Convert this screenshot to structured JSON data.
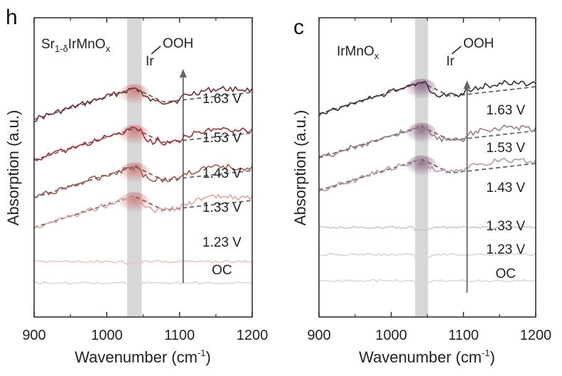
{
  "chart_data": [
    {
      "type": "line",
      "panel_letter": "h",
      "sample": {
        "main": "Sr",
        "sub": "1-δ",
        "rest": "IrMnO",
        "sub2": "x"
      },
      "annotation": {
        "metal": "Ir",
        "group": "OOH"
      },
      "xlabel": "Wavenumber (cm",
      "xlabel_sup": "-1",
      "xlabel_end": ")",
      "ylabel": "Absorption (a.u.)",
      "xlim": [
        900,
        1200
      ],
      "xticks": [
        900,
        1000,
        1100,
        1200
      ],
      "minor_xticks": [
        950,
        1050,
        1150
      ],
      "highlight_band": [
        1028,
        1048
      ],
      "arrow_x": 1105,
      "series": [
        {
          "name": "1.63 V",
          "color": "#7a2a2e",
          "offset": 5,
          "peak": 1.0,
          "fit": true
        },
        {
          "name": "1.53 V",
          "color": "#b4282e",
          "offset": 4,
          "peak": 1.0,
          "fit": true
        },
        {
          "name": "1.43 V",
          "color": "#a8584a",
          "offset": 3,
          "peak": 0.9,
          "fit": true
        },
        {
          "name": "1.33 V",
          "color": "#e3a49c",
          "offset": 2,
          "peak": 0.9,
          "fit": true
        },
        {
          "name": "1.23 V",
          "color": "#f0c3c0",
          "offset": 1,
          "peak": 0,
          "fit": false
        },
        {
          "name": "OC",
          "color": "#d9d6d6",
          "offset": 0,
          "peak": 0,
          "fit": false
        }
      ]
    },
    {
      "type": "line",
      "panel_letter": "c",
      "sample": {
        "main": "IrMnO",
        "sub": "x",
        "rest": "",
        "sub2": ""
      },
      "annotation": {
        "metal": "Ir",
        "group": "OOH"
      },
      "xlabel": "Wavenumber (cm",
      "xlabel_sup": "-1",
      "xlabel_end": ")",
      "ylabel": "Absorption (a.u.)",
      "xlim": [
        900,
        1200
      ],
      "xticks": [
        900,
        1000,
        1100,
        1200
      ],
      "minor_xticks": [
        950,
        1050,
        1150
      ],
      "highlight_band": [
        1033,
        1051
      ],
      "arrow_x": 1105,
      "series": [
        {
          "name": "1.63 V",
          "color": "#3d2a3a",
          "offset": 5,
          "peak": 0.7,
          "fit": true
        },
        {
          "name": "1.53 V",
          "color": "#9c7a90",
          "offset": 4,
          "peak": 0.9,
          "fit": true
        },
        {
          "name": "1.43 V",
          "color": "#b898ae",
          "offset": 3,
          "peak": 0.9,
          "fit": true
        },
        {
          "name": "1.33 V",
          "color": "#d4c4cc",
          "offset": 2,
          "peak": 0,
          "fit": false
        },
        {
          "name": "1.23 V",
          "color": "#ddd4d8",
          "offset": 1,
          "peak": 0,
          "fit": false
        },
        {
          "name": "OC",
          "color": "#dcd8da",
          "offset": 0,
          "peak": 0,
          "fit": false
        }
      ]
    }
  ]
}
